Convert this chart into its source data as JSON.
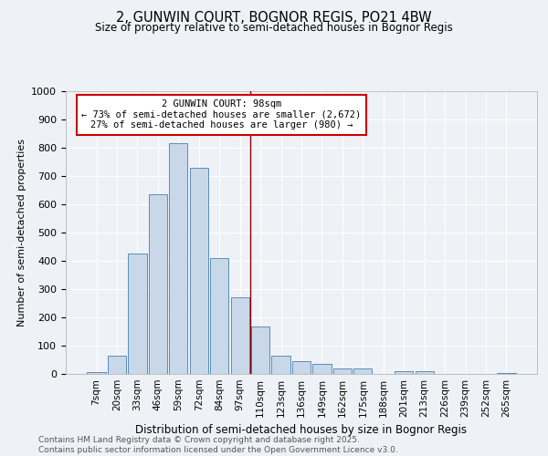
{
  "title": "2, GUNWIN COURT, BOGNOR REGIS, PO21 4BW",
  "subtitle": "Size of property relative to semi-detached houses in Bognor Regis",
  "xlabel": "Distribution of semi-detached houses by size in Bognor Regis",
  "ylabel": "Number of semi-detached properties",
  "categories": [
    "7sqm",
    "20sqm",
    "33sqm",
    "46sqm",
    "59sqm",
    "72sqm",
    "84sqm",
    "97sqm",
    "110sqm",
    "123sqm",
    "136sqm",
    "149sqm",
    "162sqm",
    "175sqm",
    "188sqm",
    "201sqm",
    "213sqm",
    "226sqm",
    "239sqm",
    "252sqm",
    "265sqm"
  ],
  "values": [
    5,
    65,
    425,
    635,
    815,
    730,
    410,
    270,
    168,
    65,
    45,
    35,
    18,
    18,
    0,
    10,
    10,
    0,
    0,
    0,
    2
  ],
  "bar_color": "#c8d8e8",
  "bar_edge_color": "#5b8db8",
  "annotation_title": "2 GUNWIN COURT: 98sqm",
  "annotation_line1": "← 73% of semi-detached houses are smaller (2,672)",
  "annotation_line2": "27% of semi-detached houses are larger (980) →",
  "annotation_box_color": "#cc0000",
  "ylim": [
    0,
    1000
  ],
  "yticks": [
    0,
    100,
    200,
    300,
    400,
    500,
    600,
    700,
    800,
    900,
    1000
  ],
  "background_color": "#eef2f7",
  "grid_color": "#ffffff",
  "footer_line1": "Contains HM Land Registry data © Crown copyright and database right 2025.",
  "footer_line2": "Contains public sector information licensed under the Open Government Licence v3.0.",
  "property_bar_index": 7
}
